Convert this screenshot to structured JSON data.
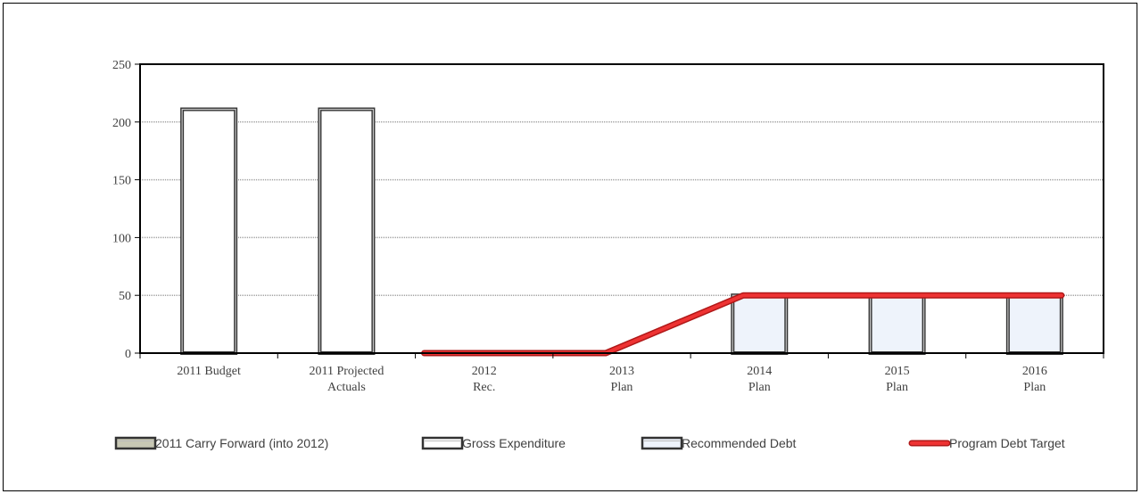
{
  "chart_data": {
    "type": "bar",
    "categories": [
      [
        "2011 Budget"
      ],
      [
        "2011 Projected",
        "Actuals"
      ],
      [
        "2012",
        "Rec."
      ],
      [
        "2013",
        "Plan"
      ],
      [
        "2014",
        "Plan"
      ],
      [
        "2015",
        "Plan"
      ],
      [
        "2016",
        "Plan"
      ]
    ],
    "ylim": [
      0,
      250
    ],
    "yticks": [
      "0",
      "50",
      "100",
      "150",
      "200",
      "250"
    ],
    "grid": true,
    "series": [
      {
        "name": "2011 Carry Forward (into 2012)",
        "kind": "bar",
        "values": [
          0,
          0,
          0,
          0,
          0,
          0,
          0
        ],
        "fill": "#c8c8b4"
      },
      {
        "name": "Gross Expenditure",
        "kind": "bar",
        "values": [
          211,
          211,
          0,
          0,
          0,
          0,
          0
        ],
        "fill": "#ffffff"
      },
      {
        "name": "Recommended Debt",
        "kind": "bar",
        "values": [
          0,
          0,
          0,
          0,
          50,
          50,
          50
        ],
        "fill": "#eef3fb"
      },
      {
        "name": "Program Debt Target",
        "kind": "line",
        "values": [
          null,
          null,
          0,
          0,
          50,
          50,
          50
        ],
        "color": "#ee3333"
      }
    ],
    "legend_position": "bottom"
  }
}
